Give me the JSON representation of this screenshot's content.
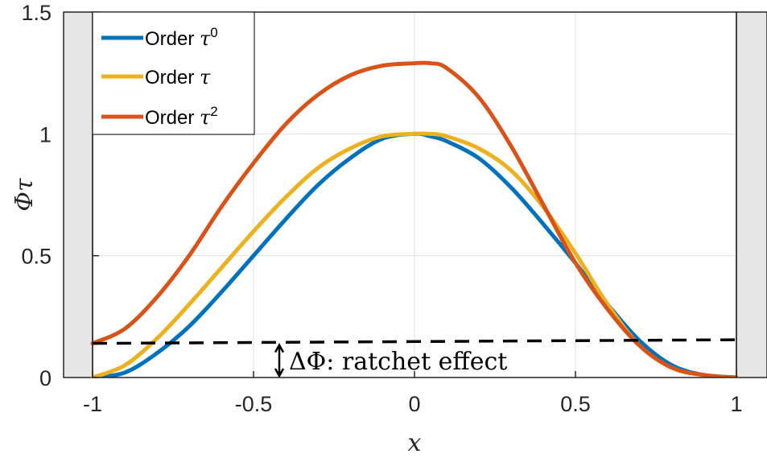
{
  "chart_data": {
    "type": "line",
    "xlabel": "x",
    "ylabel": "Φτ",
    "xlim": [
      -1,
      1
    ],
    "ylim": [
      0,
      1.5
    ],
    "x_ticks": [
      -1,
      -0.5,
      0,
      0.5,
      1
    ],
    "x_tick_labels": [
      "-1",
      "-0.5",
      "0",
      "0.5",
      "1"
    ],
    "y_ticks": [
      0,
      0.5,
      1,
      1.5
    ],
    "y_tick_labels": [
      "0",
      "0.5",
      "1",
      "1.5"
    ],
    "grid": true,
    "legend_position": "top-left",
    "x": [
      -1.0,
      -0.9,
      -0.8,
      -0.7,
      -0.6,
      -0.5,
      -0.4,
      -0.3,
      -0.2,
      -0.1,
      0.0,
      0.05,
      0.1,
      0.2,
      0.3,
      0.4,
      0.5,
      0.6,
      0.7,
      0.8,
      0.9,
      1.0
    ],
    "series": [
      {
        "name": "Order τ⁰",
        "legend_base": "Order ",
        "legend_symbol": "τ",
        "legend_sup": "0",
        "color": "#0072BD",
        "values": [
          0.0,
          0.02,
          0.1,
          0.21,
          0.35,
          0.5,
          0.65,
          0.79,
          0.9,
          0.98,
          1.0,
          0.99,
          0.97,
          0.9,
          0.78,
          0.63,
          0.47,
          0.3,
          0.15,
          0.05,
          0.01,
          0.0
        ]
      },
      {
        "name": "Order τ",
        "legend_base": "Order ",
        "legend_symbol": "τ",
        "legend_sup": "",
        "color": "#EDB120",
        "values": [
          0.0,
          0.05,
          0.16,
          0.3,
          0.45,
          0.6,
          0.74,
          0.86,
          0.94,
          0.99,
          1.0,
          1.0,
          0.99,
          0.94,
          0.85,
          0.7,
          0.51,
          0.3,
          0.13,
          0.04,
          0.01,
          0.0
        ]
      },
      {
        "name": "Order τ²",
        "legend_base": "Order ",
        "legend_symbol": "τ",
        "legend_sup": "2",
        "color": "#D95319",
        "values": [
          0.14,
          0.2,
          0.33,
          0.5,
          0.7,
          0.88,
          1.04,
          1.16,
          1.24,
          1.28,
          1.29,
          1.29,
          1.27,
          1.15,
          0.95,
          0.71,
          0.47,
          0.28,
          0.13,
          0.04,
          0.01,
          0.0
        ]
      }
    ],
    "reference_line": {
      "style": "dashed",
      "color": "#000000",
      "y_start": 0.14,
      "y_end": 0.155
    },
    "annotation": {
      "text": "ΔΦ: ratchet effect",
      "x": -0.42,
      "y_bottom": 0.0,
      "y_top": 0.14
    },
    "shaded_regions": [
      {
        "x_range": [
          -1.1,
          -1.0
        ]
      },
      {
        "x_range": [
          1.0,
          1.1
        ]
      }
    ],
    "colors": {
      "shade": "#E6E6E6",
      "grid": "#DFDFDF",
      "axis": "#262626"
    }
  }
}
